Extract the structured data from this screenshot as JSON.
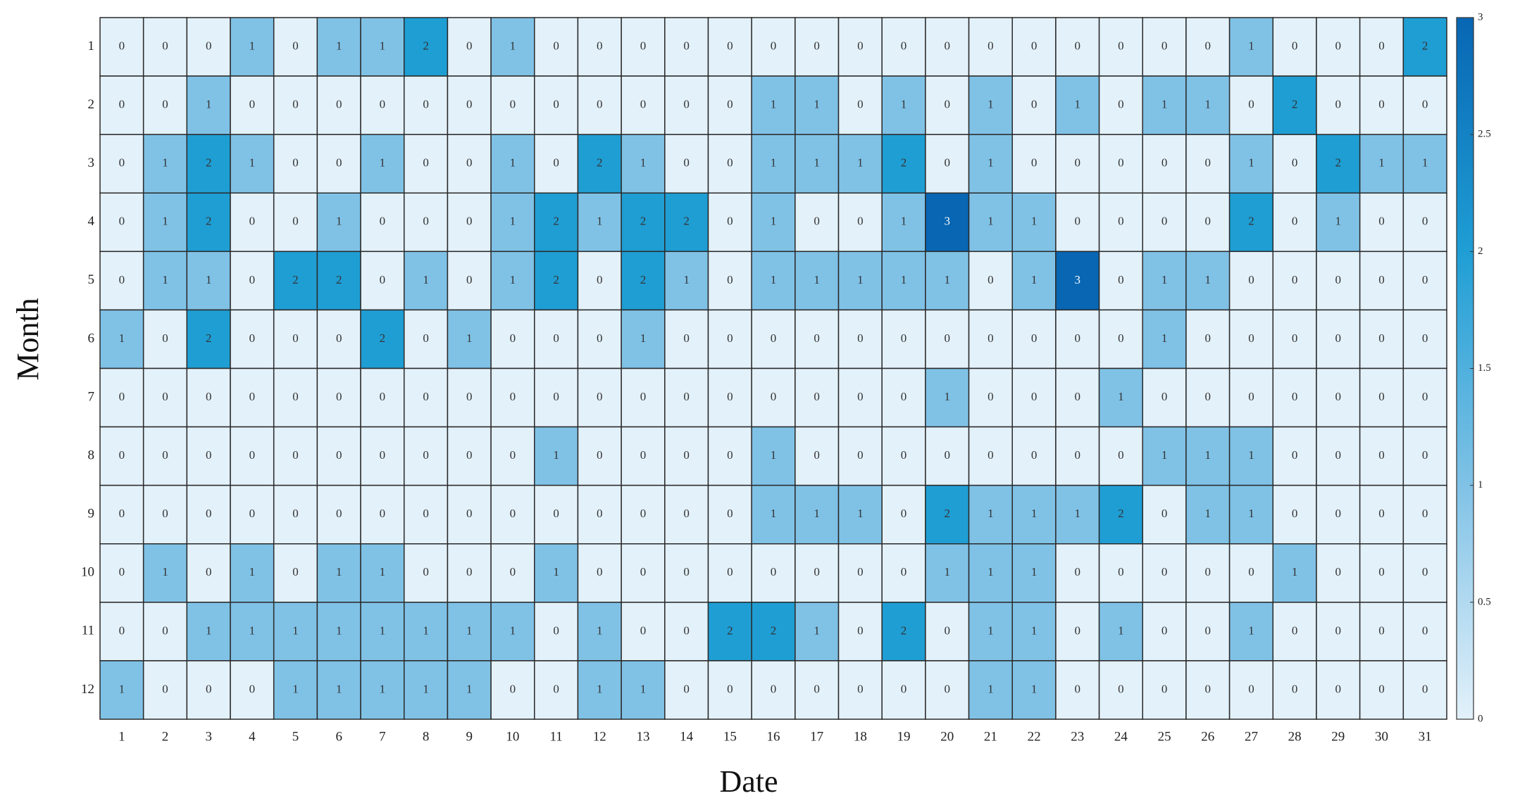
{
  "chart_data": {
    "type": "heatmap",
    "x_label": "Date",
    "y_label": "Month",
    "x_categories": [
      "1",
      "2",
      "3",
      "4",
      "5",
      "6",
      "7",
      "8",
      "9",
      "10",
      "11",
      "12",
      "13",
      "14",
      "15",
      "16",
      "17",
      "18",
      "19",
      "20",
      "21",
      "22",
      "23",
      "24",
      "25",
      "26",
      "27",
      "28",
      "29",
      "30",
      "31"
    ],
    "y_categories": [
      "1",
      "2",
      "3",
      "4",
      "5",
      "6",
      "7",
      "8",
      "9",
      "10",
      "11",
      "12"
    ],
    "values": [
      [
        0,
        0,
        0,
        1,
        0,
        1,
        1,
        2,
        0,
        1,
        0,
        0,
        0,
        0,
        0,
        0,
        0,
        0,
        0,
        0,
        0,
        0,
        0,
        0,
        0,
        0,
        1,
        0,
        0,
        0,
        2
      ],
      [
        0,
        0,
        1,
        0,
        0,
        0,
        0,
        0,
        0,
        0,
        0,
        0,
        0,
        0,
        0,
        1,
        1,
        0,
        1,
        0,
        1,
        0,
        1,
        0,
        1,
        1,
        0,
        2,
        0,
        0,
        0
      ],
      [
        0,
        1,
        2,
        1,
        0,
        0,
        1,
        0,
        0,
        1,
        0,
        2,
        1,
        0,
        0,
        1,
        1,
        1,
        2,
        0,
        1,
        0,
        0,
        0,
        0,
        0,
        1,
        0,
        2,
        1,
        1
      ],
      [
        0,
        1,
        2,
        0,
        0,
        1,
        0,
        0,
        0,
        1,
        2,
        1,
        2,
        2,
        0,
        1,
        0,
        0,
        1,
        3,
        1,
        1,
        0,
        0,
        0,
        0,
        2,
        0,
        1,
        0,
        0
      ],
      [
        0,
        1,
        1,
        0,
        2,
        2,
        0,
        1,
        0,
        1,
        2,
        0,
        2,
        1,
        0,
        1,
        1,
        1,
        1,
        1,
        0,
        1,
        3,
        0,
        1,
        1,
        0,
        0,
        0,
        0,
        0
      ],
      [
        1,
        0,
        2,
        0,
        0,
        0,
        2,
        0,
        1,
        0,
        0,
        0,
        1,
        0,
        0,
        0,
        0,
        0,
        0,
        0,
        0,
        0,
        0,
        0,
        1,
        0,
        0,
        0,
        0,
        0,
        0
      ],
      [
        0,
        0,
        0,
        0,
        0,
        0,
        0,
        0,
        0,
        0,
        0,
        0,
        0,
        0,
        0,
        0,
        0,
        0,
        0,
        1,
        0,
        0,
        0,
        1,
        0,
        0,
        0,
        0,
        0,
        0,
        0
      ],
      [
        0,
        0,
        0,
        0,
        0,
        0,
        0,
        0,
        0,
        0,
        1,
        0,
        0,
        0,
        0,
        1,
        0,
        0,
        0,
        0,
        0,
        0,
        0,
        0,
        1,
        1,
        1,
        0,
        0,
        0,
        0
      ],
      [
        0,
        0,
        0,
        0,
        0,
        0,
        0,
        0,
        0,
        0,
        0,
        0,
        0,
        0,
        0,
        1,
        1,
        1,
        0,
        2,
        1,
        1,
        1,
        2,
        0,
        1,
        1,
        0,
        0,
        0,
        0
      ],
      [
        0,
        1,
        0,
        1,
        0,
        1,
        1,
        0,
        0,
        0,
        1,
        0,
        0,
        0,
        0,
        0,
        0,
        0,
        0,
        1,
        1,
        1,
        0,
        0,
        0,
        0,
        0,
        1,
        0,
        0,
        0
      ],
      [
        0,
        0,
        1,
        1,
        1,
        1,
        1,
        1,
        1,
        1,
        0,
        1,
        0,
        0,
        2,
        2,
        1,
        0,
        2,
        0,
        1,
        1,
        0,
        1,
        0,
        0,
        1,
        0,
        0,
        0,
        0
      ],
      [
        1,
        0,
        0,
        0,
        1,
        1,
        1,
        1,
        1,
        0,
        0,
        1,
        1,
        0,
        0,
        0,
        0,
        0,
        0,
        0,
        1,
        1,
        0,
        0,
        0,
        0,
        0,
        0,
        0,
        0,
        0
      ]
    ],
    "colormap": [
      "#e3f1fa",
      "#80c2e6",
      "#1f9ed4",
      "#0866b3"
    ],
    "colorbar_lim": [
      0,
      3
    ],
    "colorbar_ticks": [
      0,
      0.5,
      1,
      1.5,
      2,
      2.5,
      3
    ]
  }
}
